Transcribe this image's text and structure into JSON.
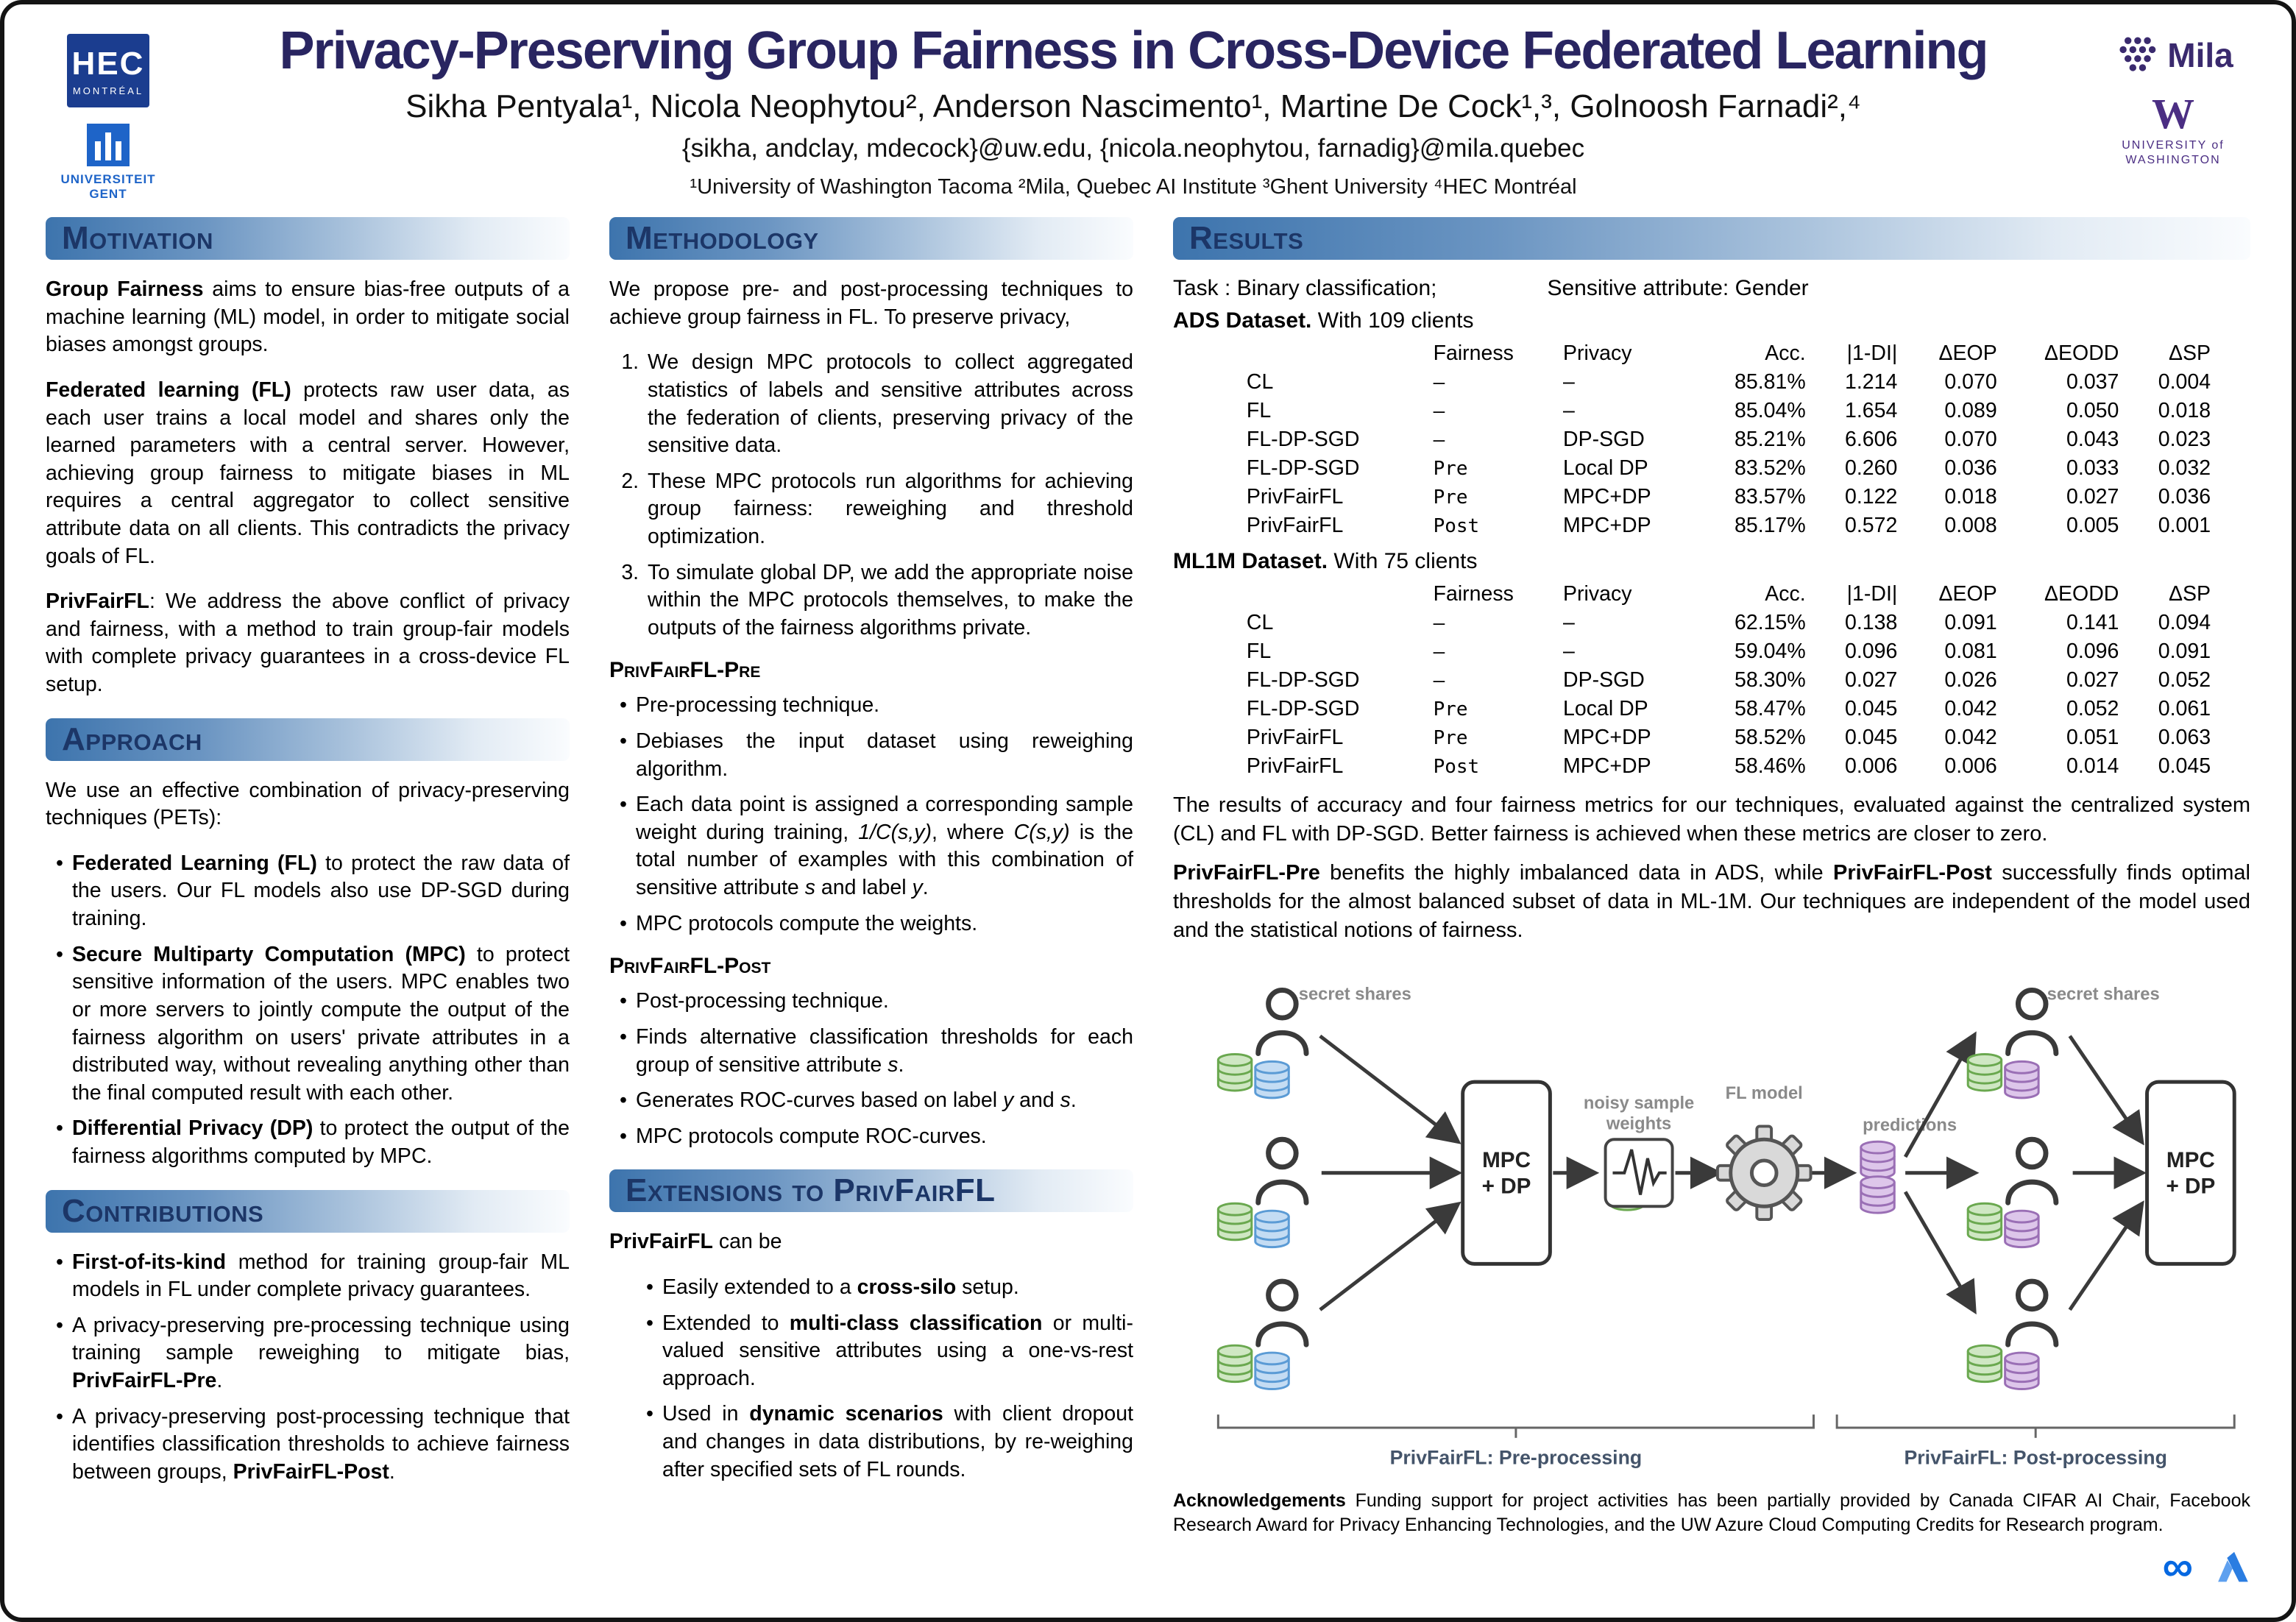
{
  "theme": {
    "title_color": "#292561",
    "section_text": "#1c3667",
    "grad_start": "#3d74ad",
    "db_green": "#cfe7c3",
    "db_blue": "#c4dcf3",
    "db_purple": "#ddc6ea"
  },
  "header": {
    "title": "Privacy-Preserving Group Fairness in Cross-Device Federated Learning",
    "authors": "Sikha Pentyala¹, Nicola Neophytou², Anderson Nascimento¹, Martine De Cock¹,³, Golnoosh Farnadi²,⁴",
    "emails": "{sikha, andclay, mdecock}@uw.edu, {nicola.neophytou, farnadig}@mila.quebec",
    "affiliations": "¹University of Washington Tacoma  ²Mila, Quebec AI Institute  ³Ghent University  ⁴HEC Montréal",
    "logos": {
      "hec_line1": "HEC",
      "hec_line2": "MONTRÉAL",
      "ugent_line1": "UNIVERSITEIT",
      "ugent_line2": "GENT",
      "mila": "Mila",
      "uw_w": "W",
      "uw_line1": "UNIVERSITY of",
      "uw_line2": "WASHINGTON"
    }
  },
  "sections": {
    "motivation": {
      "title": "Motivation",
      "paragraphs": [
        "**Group Fairness** aims to ensure bias-free outputs of a machine learning (ML) model, in order to mitigate social biases amongst groups.",
        "**Federated learning (FL)** protects raw user data, as each user trains a local model and shares only the learned parameters with a central server. However, achieving group fairness to mitigate biases in ML requires a central aggregator to collect sensitive attribute data on all clients. This contradicts the privacy goals of FL.",
        "**PrivFairFL**: We address the above conflict of privacy and fairness, with a method to train group-fair models with complete privacy guarantees in a cross-device FL setup."
      ]
    },
    "approach": {
      "title": "Approach",
      "intro": "We use an effective combination of privacy-preserving techniques (PETs):",
      "bullets": [
        "**Federated Learning (FL)** to protect the raw data of the users. Our FL models also use DP-SGD during training.",
        "**Secure Multiparty Computation (MPC)** to protect sensitive information of the users. MPC enables two or more servers to jointly compute the output of the fairness algorithm on users' private attributes in a distributed way, without revealing anything other than the final computed result with each other.",
        "**Differential Privacy (DP)** to protect the output of the fairness algorithms computed by MPC."
      ]
    },
    "contributions": {
      "title": "Contributions",
      "bullets": [
        "**First-of-its-kind** method for training group-fair ML models in FL under complete privacy guarantees.",
        "A privacy-preserving pre-processing technique using training sample reweighing to mitigate bias, **PrivFairFL-Pre**.",
        "A privacy-preserving post-processing technique that identifies classification thresholds to achieve fairness between groups, **PrivFairFL-Post**."
      ]
    },
    "methodology": {
      "title": "Methodology",
      "intro": "We propose pre- and post-processing techniques to achieve group fairness in FL. To preserve privacy,",
      "steps": [
        "We design MPC protocols to collect aggregated statistics of labels and sensitive attributes across the federation of clients, preserving privacy of the sensitive data.",
        "These MPC protocols run algorithms for achieving group fairness: reweighing and threshold optimization.",
        "To simulate global DP, we add the appropriate noise within the MPC protocols themselves, to make the outputs of the fairness algorithms private."
      ],
      "pre": {
        "title": "PrivFairFL-Pre",
        "bullets": [
          "Pre-processing technique.",
          "Debiases the input dataset using reweighing algorithm.",
          "Each data point is assigned a corresponding sample weight during training, _1/C(s,y)_, where _C(s,y)_ is the total number of examples with this combination of sensitive attribute _s_ and label _y_.",
          "MPC protocols compute the weights."
        ]
      },
      "post": {
        "title": "PrivFairFL-Post",
        "bullets": [
          "Post-processing technique.",
          "Finds alternative classification thresholds for each group of sensitive attribute _s_.",
          "Generates ROC-curves based on label _y_ and _s_.",
          "MPC protocols compute ROC-curves."
        ]
      }
    },
    "extensions": {
      "title": "Extensions to PrivFairFL",
      "intro": "**PrivFairFL** can be",
      "bullets": [
        "Easily extended to a **cross-silo** setup.",
        "Extended to **multi-class classification** or multi-valued sensitive attributes using a one-vs-rest approach.",
        "Used in **dynamic scenarios** with client dropout and changes in data distributions, by re-weighing after specified sets of FL rounds."
      ]
    },
    "results": {
      "title": "Results",
      "task": "Task : Binary classification;",
      "sensitive": "Sensitive attribute: Gender",
      "ads_caption": "**ADS Dataset.** With 109 clients",
      "ml1m_caption": "**ML1M Dataset.** With 75 clients",
      "ads_table": {
        "columns": [
          "",
          "Fairness",
          "Privacy",
          "Acc.",
          "|1-DI|",
          "ΔEOP",
          "ΔEODD",
          "ΔSP"
        ],
        "rows": [
          [
            "CL",
            "–",
            "–",
            "85.81%",
            "1.214",
            "0.070",
            "0.037",
            "0.004"
          ],
          [
            "FL",
            "–",
            "–",
            "85.04%",
            "1.654",
            "0.089",
            "0.050",
            "0.018"
          ],
          [
            "FL-DP-SGD",
            "–",
            "DP-SGD",
            "85.21%",
            "6.606",
            "0.070",
            "0.043",
            "0.023"
          ],
          [
            "FL-DP-SGD",
            "Pre",
            "Local DP",
            "83.52%",
            "0.260",
            "0.036",
            "0.033",
            "0.032"
          ],
          [
            "PrivFairFL",
            "Pre",
            "MPC+DP",
            "83.57%",
            "0.122",
            "0.018",
            "0.027",
            "0.036"
          ],
          [
            "PrivFairFL",
            "Post",
            "MPC+DP",
            "85.17%",
            "0.572",
            "0.008",
            "0.005",
            "0.001"
          ]
        ]
      },
      "ml1m_table": {
        "columns": [
          "",
          "Fairness",
          "Privacy",
          "Acc.",
          "|1-DI|",
          "ΔEOP",
          "ΔEODD",
          "ΔSP"
        ],
        "rows": [
          [
            "CL",
            "–",
            "–",
            "62.15%",
            "0.138",
            "0.091",
            "0.141",
            "0.094"
          ],
          [
            "FL",
            "–",
            "–",
            "59.04%",
            "0.096",
            "0.081",
            "0.096",
            "0.091"
          ],
          [
            "FL-DP-SGD",
            "–",
            "DP-SGD",
            "58.30%",
            "0.027",
            "0.026",
            "0.027",
            "0.052"
          ],
          [
            "FL-DP-SGD",
            "Pre",
            "Local DP",
            "58.47%",
            "0.045",
            "0.042",
            "0.052",
            "0.061"
          ],
          [
            "PrivFairFL",
            "Pre",
            "MPC+DP",
            "58.52%",
            "0.045",
            "0.042",
            "0.051",
            "0.063"
          ],
          [
            "PrivFairFL",
            "Post",
            "MPC+DP",
            "58.46%",
            "0.006",
            "0.006",
            "0.014",
            "0.045"
          ]
        ]
      },
      "note1": "The results of accuracy and four fairness metrics for our techniques, evaluated against the centralized system (CL) and FL with DP-SGD. Better fairness is achieved when these metrics are closer to zero.",
      "note2": "**PrivFairFL-Pre** benefits the highly imbalanced data in ADS, while **PrivFairFL-Post** successfully finds optimal thresholds for the almost balanced subset of data in ML-1M. Our techniques are independent of the model used and the statistical notions of fairness.",
      "diagram": {
        "secret_shares": "secret shares",
        "mpc_line1": "MPC",
        "mpc_line2": "+ DP",
        "noisy_1": "noisy sample",
        "noisy_2": "weights",
        "fl_model": "FL model",
        "predictions": "predictions",
        "pre_caption": "PrivFairFL: Pre-processing",
        "post_caption": "PrivFairFL: Post-processing"
      },
      "acknowledgements": "**Acknowledgements** Funding support for project activities has been partially provided by Canada CIFAR AI Chair, Facebook Research Award for Privacy Enhancing Technologies, and the UW Azure Cloud Computing Credits for Research program.",
      "footer": {
        "meta_glyph": "∞"
      }
    }
  }
}
